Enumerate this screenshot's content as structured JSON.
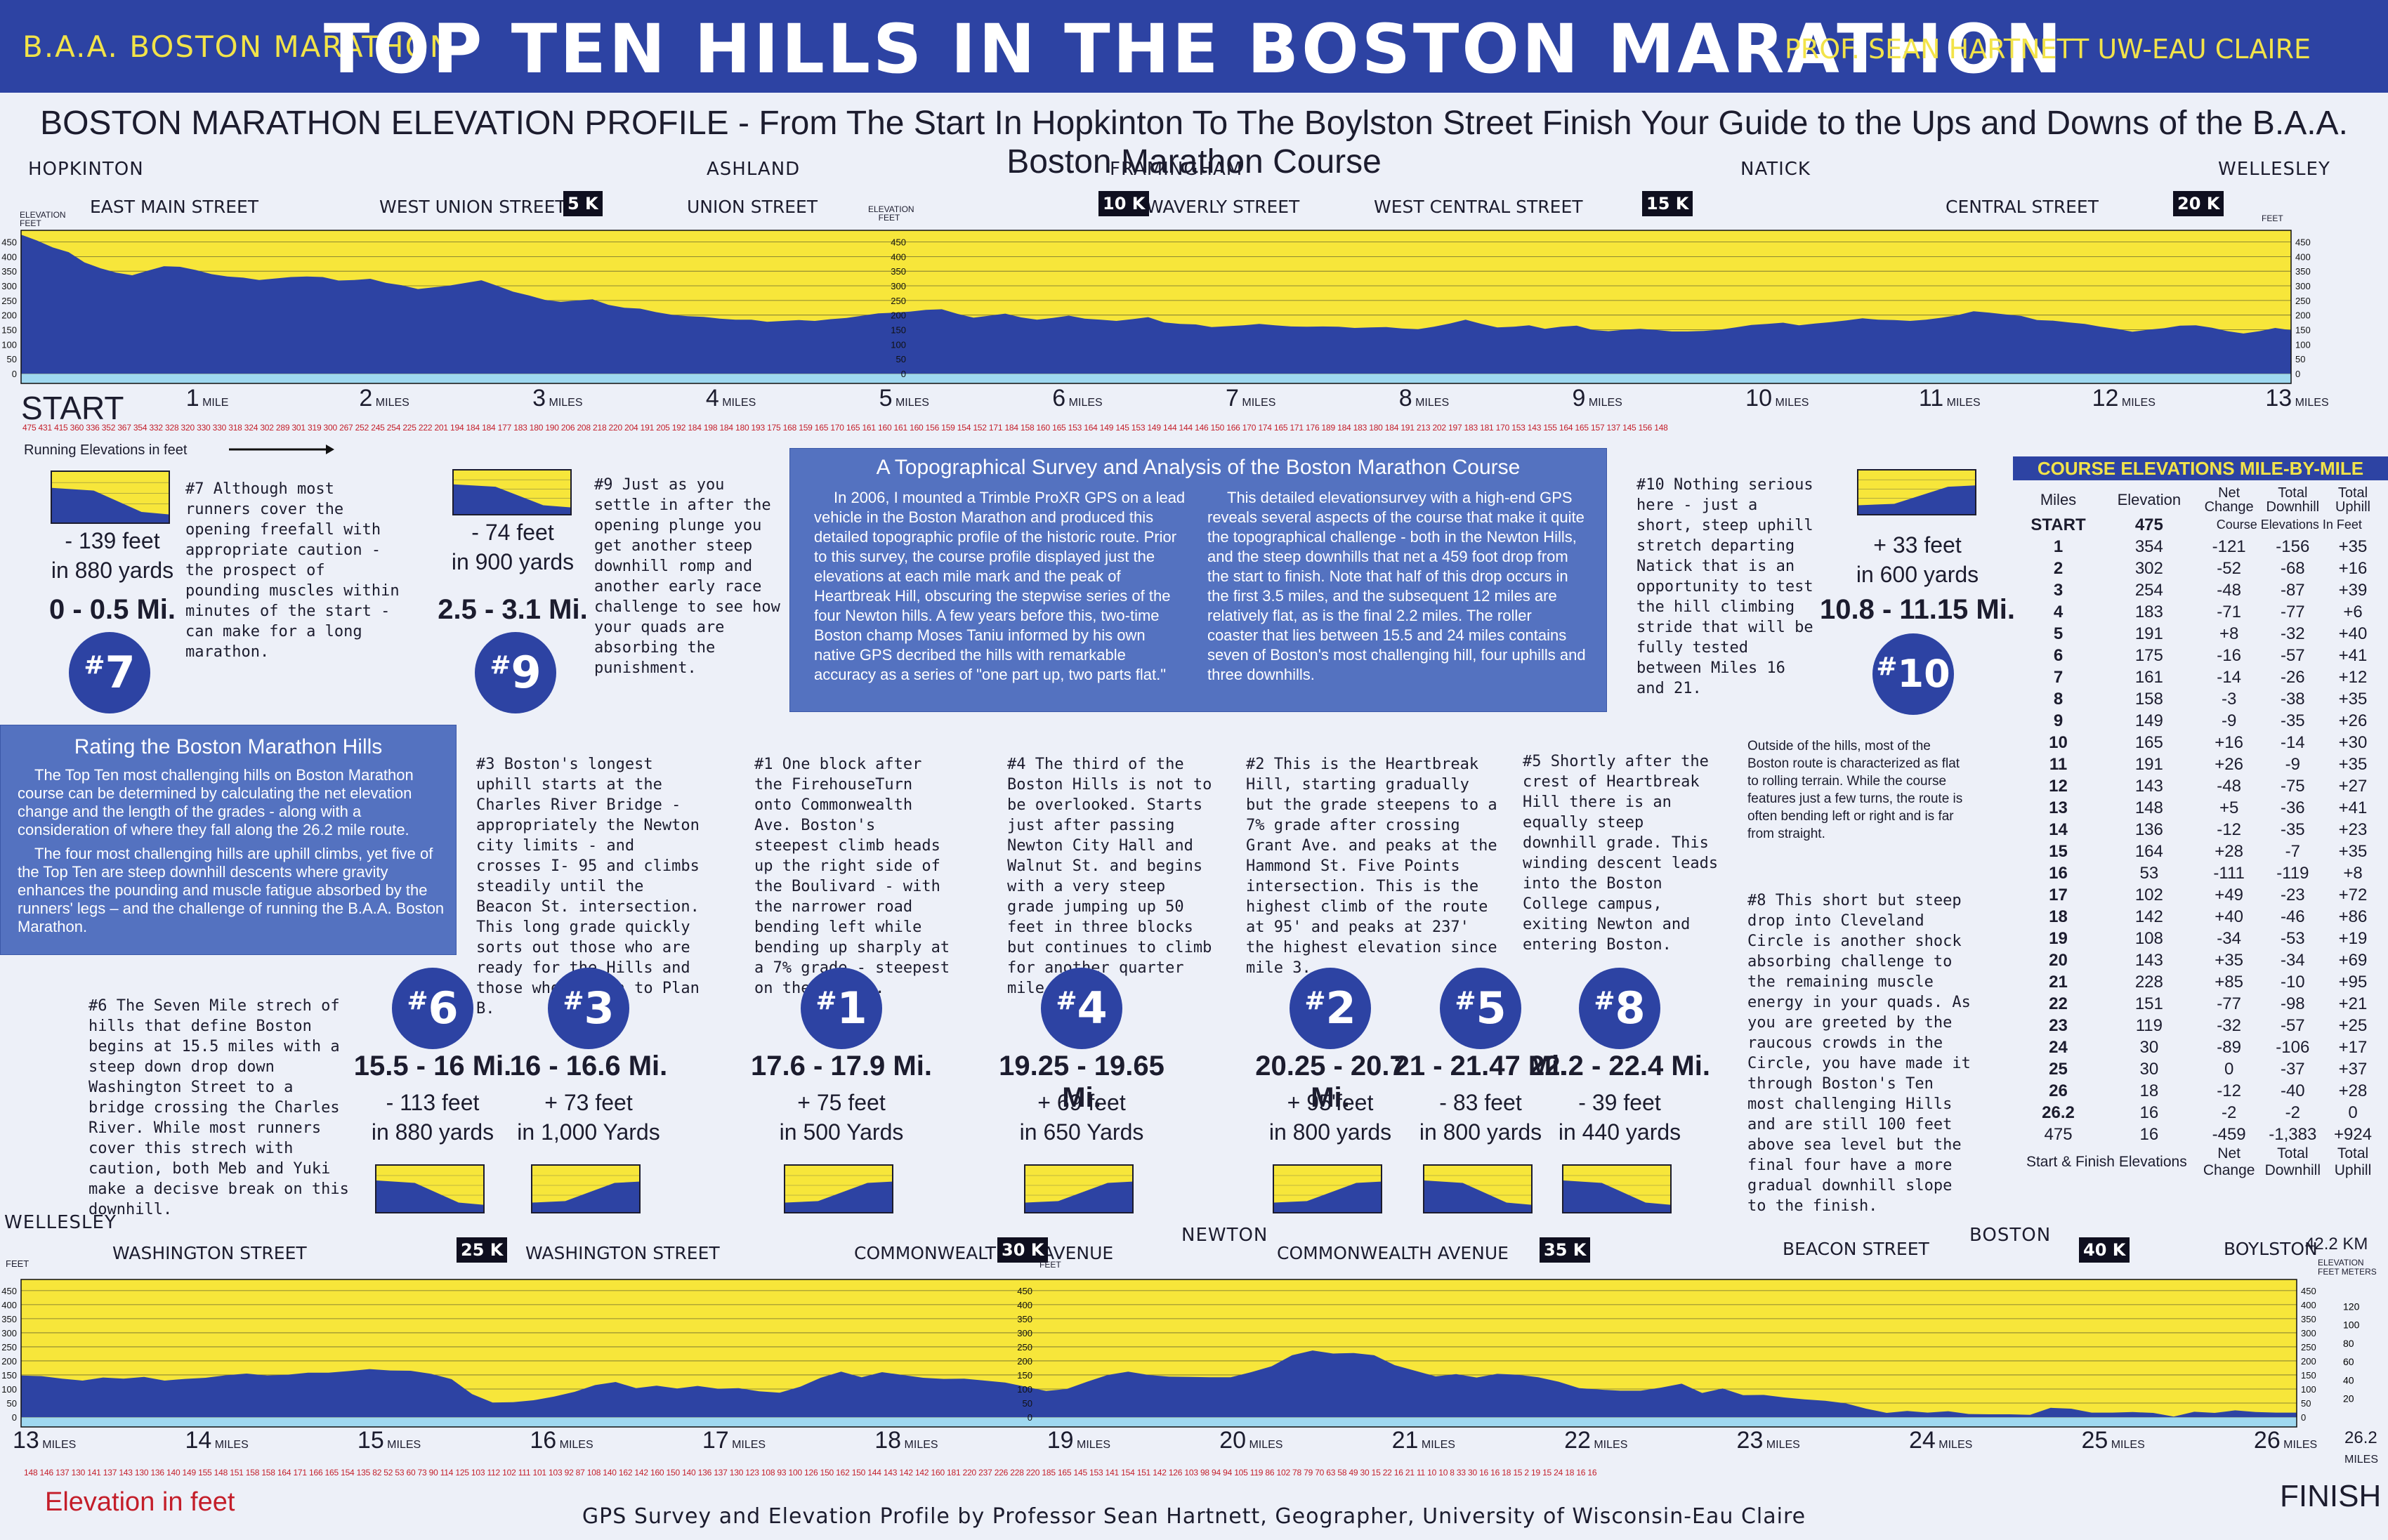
{
  "header": {
    "left": "B.A.A. BOSTON MARATHON",
    "title": "TOP TEN HILLS IN THE BOSTON MARATHON",
    "right": "PROF. SEAN HARTNETT  UW-EAU CLAIRE"
  },
  "subtitle": "BOSTON MARATHON ELEVATION PROFILE  - From The Start In Hopkinton  To The Boylston Street Finish Your Guide to the Ups and Downs of the B.A.A. Boston Marathon Course",
  "top_profile": {
    "places": [
      "HOPKINTON",
      "ASHLAND",
      "FRAMINGHAM",
      "NATICK",
      "WELLESLEY"
    ],
    "streets": [
      "EAST MAIN STREET",
      "WEST UNION STREET",
      "UNION STREET",
      "WAVERLY STREET",
      "WEST CENTRAL STREET",
      "CENTRAL STREET"
    ],
    "km_markers": [
      "5 K",
      "10 K",
      "15 K",
      "20 K"
    ],
    "axis_title_left": "ELEVATION FEET",
    "axis_title_mid": "ELEVATION FEET",
    "axis_title_right": "FEET",
    "ticks": [
      "450",
      "400",
      "350",
      "300",
      "250",
      "200",
      "150",
      "100",
      "50",
      "0"
    ],
    "start_label": "START",
    "miles_word": "MILES",
    "mile_word": "MILE",
    "mile_labels": [
      "1",
      "2",
      "3",
      "4",
      "5",
      "6",
      "7",
      "8",
      "9",
      "10",
      "11",
      "12",
      "13"
    ],
    "running_label": "Running Elevations in feet",
    "elevation_row": "475 431 415 360 336 352 367 354 332 328 320 330 330 318 324 302 289 301 319 300 267 252 245 254 225 222 201 194 184 184 177 183 180 190 206 208 218 220 204 191 205 192 184 198 184 180 193 175 168 159 165 170 165 161 160 161 160 156 159 154 152 171 184 158 160 165 153 164 149 145 153 149 144 144 146 150 166 170 174 165 171 176 189 184 183 180 184 191 213 202 197 183 181 170 153 143 155 164 165 157 137 145 156 148",
    "profile": [
      475,
      455,
      431,
      415,
      380,
      360,
      345,
      336,
      352,
      367,
      365,
      354,
      340,
      332,
      328,
      320,
      325,
      330,
      332,
      330,
      318,
      320,
      324,
      310,
      302,
      289,
      295,
      301,
      310,
      319,
      300,
      280,
      267,
      252,
      245,
      250,
      254,
      235,
      225,
      222,
      210,
      201,
      196,
      194,
      188,
      184,
      184,
      177,
      180,
      183,
      180,
      186,
      190,
      198,
      206,
      208,
      212,
      218,
      220,
      204,
      191,
      198,
      205,
      192,
      184,
      190,
      198,
      188,
      184,
      180,
      186,
      193,
      175,
      170,
      168,
      159,
      162,
      165,
      170,
      165,
      161,
      160,
      161,
      160,
      156,
      158,
      159,
      154,
      152,
      160,
      171,
      184,
      170,
      158,
      160,
      165,
      153,
      160,
      164,
      149,
      145,
      150,
      153,
      149,
      144,
      144,
      146,
      150,
      158,
      166,
      170,
      174,
      165,
      171,
      176,
      182,
      189,
      184,
      183,
      180,
      184,
      191,
      200,
      213,
      208,
      202,
      197,
      183,
      181,
      175,
      170,
      160,
      153,
      143,
      150,
      155,
      164,
      165,
      157,
      145,
      137,
      145,
      156,
      148
    ]
  },
  "bottom_profile": {
    "places": [
      "WELLESLEY",
      "NEWTON",
      "BOSTON"
    ],
    "streets": [
      "WASHINGTON STREET",
      "WASHINGTON STREET",
      "COMMONWEALTH",
      "AVENUE",
      "COMMONWEALTH  AVENUE",
      "BEACON STREET",
      "BOYLSTON"
    ],
    "km_markers": [
      "25 K",
      "30 K",
      "35 K",
      "40 K"
    ],
    "km_total": "42.2 KM",
    "axis_title_left": "FEET",
    "axis_title_mid": "FEET",
    "axis_title_right": "ELEVATION FEET METERS",
    "ticks": [
      "450",
      "400",
      "350",
      "300",
      "250",
      "200",
      "150",
      "100",
      "50",
      "0"
    ],
    "meter_ticks": [
      "120",
      "100",
      "80",
      "60",
      "40",
      "20"
    ],
    "mile_labels": [
      "13",
      "14",
      "15",
      "16",
      "17",
      "18",
      "19",
      "20",
      "21",
      "22",
      "23",
      "24",
      "25",
      "26"
    ],
    "miles_word": "MILES",
    "end_mile": "26.2",
    "finish_label": "FINISH",
    "elev_label": "Elevation in feet",
    "elevation_row": "148 146 137 130 141 137 143 130 136 140 149 155 148 151 158 158 164 171 166 165 154 135 82 52 53 60 73 90 114 125 103 112 102 111 101 103 92 87 108 140 162 142 160 150 140 136 137 130 123 108 93 100 126 150 162 150 144 143 142 142 160 181 220 237 226 228 220 185 165 145 153 141 154 151 142 126 103 98 94 94 105 119 86 102 78 79 70 63 58 49 30 15 22 16 21 11 10 10 8 33 30 16 16 18 15 2 19 15 24 18 16 16",
    "profile": [
      148,
      146,
      137,
      130,
      141,
      137,
      143,
      130,
      136,
      140,
      149,
      155,
      148,
      151,
      158,
      158,
      164,
      171,
      166,
      165,
      154,
      135,
      82,
      52,
      53,
      60,
      73,
      90,
      114,
      125,
      103,
      112,
      102,
      111,
      101,
      103,
      92,
      87,
      108,
      140,
      162,
      142,
      160,
      150,
      140,
      136,
      137,
      130,
      123,
      108,
      93,
      100,
      126,
      150,
      162,
      150,
      144,
      143,
      142,
      142,
      160,
      181,
      220,
      237,
      226,
      228,
      220,
      185,
      165,
      145,
      153,
      141,
      154,
      151,
      142,
      126,
      103,
      98,
      94,
      94,
      105,
      119,
      86,
      102,
      78,
      79,
      70,
      63,
      58,
      49,
      30,
      15,
      22,
      16,
      21,
      11,
      10,
      10,
      8,
      33,
      30,
      16,
      16,
      18,
      15,
      2,
      19,
      15,
      24,
      18,
      16,
      16
    ]
  },
  "survey": {
    "title": "A Topographical Survey and Analysis of the Boston Marathon Course",
    "col1": "In 2006, I mounted a Trimble ProXR GPS on a lead vehicle in the Boston Marathon and produced this detailed topographic profile of the historic route. Prior to this survey, the course profile displayed just the elevations at each mile mark and the peak of Heartbreak Hill, obscuring the stepwise series of the four Newton hills. A few years before this, two-time Boston champ Moses Taniu informed by his own native GPS decribed the hills with remarkable accuracy as  a series of \"one part up, two parts flat.\"",
    "col2": "This detailed elevationsurvey with a high-end GPS reveals several aspects of the course that make it quite the topographical challenge - both in the Newton Hills, and the steep downhills that net a 459 foot drop from the start to finish. Note that half of this drop occurs in the first 3.5 miles, and the subsequent 12 miles are relatively flat, as is the final 2.2 miles. The roller coaster that lies between 15.5 and 24 miles contains seven of Boston's most challenging hill, four uphills and three downhills."
  },
  "rating": {
    "title": "Rating the Boston Marathon Hills",
    "p1": "The Top Ten most challenging hills on Boston Marathon course can be determined by calculating the net elevation change and the length of the grades - along with a consideration of where they fall along the 26.2 mile route.",
    "p2": "The four most challenging hills are uphill climbs, yet five of the Top Ten are steep downhill descents where gravity enhances the pounding and muscle fatigue absorbed by the runners' legs – and the challenge of running the B.A.A. Boston Marathon."
  },
  "hills": [
    {
      "rank": "7",
      "range": "0 - 0.5 Mi.",
      "change": "- 139 feet",
      "dist": "in 880 yards",
      "desc": "#7 Although most runners cover the opening freefall with appropriate caution - the prospect of pounding muscles within minutes of the start - can make for a long marathon.",
      "dir": "down"
    },
    {
      "rank": "9",
      "range": "2.5 - 3.1 Mi.",
      "change": "- 74 feet",
      "dist": "in 900 yards",
      "desc": "#9 Just as you settle in after the opening plunge you get another steep downhill romp and another early race challenge to see how your quads are absorbing the punishment.",
      "dir": "down"
    },
    {
      "rank": "10",
      "range": "10.8 - 11.15 Mi.",
      "change": "+ 33 feet",
      "dist": "in 600 yards",
      "desc": "#10 Nothing serious here - just a short, steep uphill stretch departing Natick that is an opportunity to test the hill climbing stride that will be fully tested between Miles 16 and 21.",
      "dir": "up"
    },
    {
      "rank": "6",
      "range": "15.5 - 16 Mi.",
      "change": "- 113 feet",
      "dist": "in 880 yards",
      "desc": "#6 The Seven Mile strech of hills that define Boston begins at 15.5 miles with a steep down drop down Washington Street to a bridge crossing the Charles River. While most runners cover this strech with caution, both Meb and Yuki make a decisve break on this downhill.",
      "dir": "down"
    },
    {
      "rank": "3",
      "range": "16 - 16.6 Mi.",
      "change": "+ 73 feet",
      "dist": "in 1,000 Yards",
      "desc": "#3 Boston's longest uphill starts at the Charles River Bridge - appropriately the Newton city limits - and crosses I- 95 and climbs steadily until the Beacon St. intersection. This long grade quickly sorts out those who are ready for the Hills and those who are on to Plan B.",
      "dir": "up"
    },
    {
      "rank": "1",
      "range": "17.6 - 17.9 Mi.",
      "change": "+ 75 feet",
      "dist": "in 500 Yards",
      "desc": "#1 One block after the FirehouseTurn onto Commonwealth Ave. Boston's steepest climb heads up the right side of the Boulivard - with the narrower road bending left while bending up sharply at a 7% grade - steepest on the course.",
      "dir": "up"
    },
    {
      "rank": "4",
      "range": "19.25 - 19.65 Mi.",
      "change": "+ 69 feet",
      "dist": "in 650 Yards",
      "desc": "#4 The third of the Boston Hills is not to be overlooked. Starts just after passing Newton City Hall and Walnut St. and begins with a very steep grade jumping up 50 feet in three blocks but continues to climb for another quarter mile.",
      "dir": "up"
    },
    {
      "rank": "2",
      "range": "20.25 - 20.7 Mi.",
      "change": "+ 95'feet",
      "dist": "in 800 yards",
      "desc": "#2 This is the Heartbreak Hill, starting gradually but the grade steepens to a 7% grade after crossing Grant Ave. and peaks at the Hammond St. Five Points intersection. This is the highest climb of the route at 95' and peaks at 237' the highest elevation since mile 3.",
      "dir": "up"
    },
    {
      "rank": "5",
      "range": "21 - 21.47 Mi.",
      "change": "- 83 feet",
      "dist": "in 800 yards",
      "desc": "#5 Shortly after the crest of Heartbreak Hill there is an equally steep downhill grade. This winding descent leads into the Boston College campus, exiting Newton and entering Boston.",
      "dir": "down"
    },
    {
      "rank": "8",
      "range": "22.2 - 22.4 Mi.",
      "change": "- 39 feet",
      "dist": "in 440 yards",
      "desc": "#8 This short but steep drop into Cleveland Circle is another shock absorbing challenge to the remaining muscle energy in your quads. As you are greeted by the raucous crowds in the Circle, you have made it through Boston's Ten most challenging Hills and are still 100 feet above sea level but the final four have a more gradual downhill slope to the finish.",
      "dir": "down"
    }
  ],
  "outside_note": "Outside of the hills, most of the Boston route is characterized as flat to rolling terrain. While the course features just a few turns, the route is often bending left or right and is far from straight.",
  "table": {
    "title": "COURSE ELEVATIONS  MILE-BY-MILE",
    "headers": [
      "Miles",
      "Elevation",
      "Net Change",
      "Total Downhill",
      "Total Uphill"
    ],
    "subheader": "Course Elevations In Feet",
    "start_row": [
      "START",
      "475"
    ],
    "rows": [
      [
        "1",
        "354",
        "-121",
        "-156",
        "+35"
      ],
      [
        "2",
        "302",
        "-52",
        "-68",
        "+16"
      ],
      [
        "3",
        "254",
        "-48",
        "-87",
        "+39"
      ],
      [
        "4",
        "183",
        "-71",
        "-77",
        "+6"
      ],
      [
        "5",
        "191",
        "+8",
        "-32",
        "+40"
      ],
      [
        "6",
        "175",
        "-16",
        "-57",
        "+41"
      ],
      [
        "7",
        "161",
        "-14",
        "-26",
        "+12"
      ],
      [
        "8",
        "158",
        "-3",
        "-38",
        "+35"
      ],
      [
        "9",
        "149",
        "-9",
        "-35",
        "+26"
      ],
      [
        "10",
        "165",
        "+16",
        "-14",
        "+30"
      ],
      [
        "11",
        "191",
        "+26",
        "-9",
        "+35"
      ],
      [
        "12",
        "143",
        "-48",
        "-75",
        "+27"
      ],
      [
        "13",
        "148",
        "+5",
        "-36",
        "+41"
      ],
      [
        "14",
        "136",
        "-12",
        "-35",
        "+23"
      ],
      [
        "15",
        "164",
        "+28",
        "-7",
        "+35"
      ],
      [
        "16",
        "53",
        "-111",
        "-119",
        "+8"
      ],
      [
        "17",
        "102",
        "+49",
        "-23",
        "+72"
      ],
      [
        "18",
        "142",
        "+40",
        "-46",
        "+86"
      ],
      [
        "19",
        "108",
        "-34",
        "-53",
        "+19"
      ],
      [
        "20",
        "143",
        "+35",
        "-34",
        "+69"
      ],
      [
        "21",
        "228",
        "+85",
        "-10",
        "+95"
      ],
      [
        "22",
        "151",
        "-77",
        "-98",
        "+21"
      ],
      [
        "23",
        "119",
        "-32",
        "-57",
        "+25"
      ],
      [
        "24",
        "30",
        "-89",
        "-106",
        "+17"
      ],
      [
        "25",
        "30",
        "0",
        "-37",
        "+37"
      ],
      [
        "26",
        "18",
        "-12",
        "-40",
        "+28"
      ],
      [
        "26.2",
        "16",
        "-2",
        "-2",
        "0"
      ]
    ],
    "total_row": [
      "475",
      "16",
      "-459",
      "-1,383",
      "+924"
    ],
    "footer": [
      "Start & Finish Elevations",
      "Net Change",
      "Total Downhill",
      "Total Uphill"
    ]
  },
  "footer": "GPS Survey and Elevation Profile by Professor Sean Hartnett, Geographer, University of Wisconsin-Eau Claire",
  "colors": {
    "header": "#2d43a3",
    "accent": "#f2e349",
    "terrain": "#2d43a3",
    "sky": "#f7e63a",
    "panel": "#5472c0",
    "red": "#c41e2a"
  }
}
